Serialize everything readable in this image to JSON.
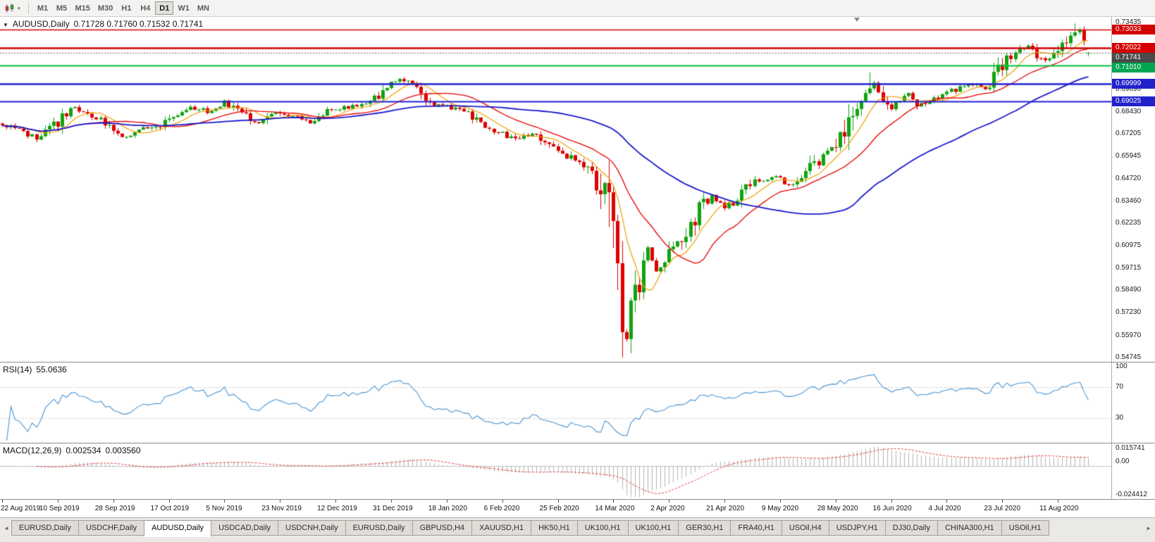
{
  "toolbar": {
    "timeframes": [
      "M1",
      "M5",
      "M15",
      "M30",
      "H1",
      "H4",
      "D1",
      "W1",
      "MN"
    ],
    "active": "D1"
  },
  "chart": {
    "title": "AUDUSD,Daily",
    "ohlc": "0.71728 0.71760 0.71532 0.71741"
  },
  "price_axis": {
    "ticks": [
      "0.73435",
      "0.69690",
      "0.68430",
      "0.67205",
      "0.65945",
      "0.64720",
      "0.63460",
      "0.62235",
      "0.60975",
      "0.59715",
      "0.58490",
      "0.57230",
      "0.55970",
      "0.54745"
    ],
    "badges": [
      {
        "text": "0.73033",
        "price": 0.73033,
        "bg": "#d40000"
      },
      {
        "text": "0.72022",
        "price": 0.72022,
        "bg": "#d40000"
      },
      {
        "text": "0.71741",
        "price": 0.71741,
        "bg": "#4a4a4a"
      },
      {
        "text": "0.71010",
        "price": 0.7101,
        "bg": "#00a651"
      },
      {
        "text": "0.69999",
        "price": 0.69999,
        "bg": "#2222cc"
      },
      {
        "text": "0.69025",
        "price": 0.69025,
        "bg": "#2222cc"
      }
    ]
  },
  "rsi": {
    "label": "RSI(14)",
    "value": "55.0636",
    "axis_labels": [
      "100",
      "70",
      "30"
    ],
    "levels": [
      70,
      30
    ],
    "color": "#4a94d2"
  },
  "macd": {
    "label": "MACD(12,26,9)",
    "main_value": "0.002534",
    "signal_value": "0.003560",
    "axis_labels": [
      "0.015741",
      "0.00",
      "-0.024412"
    ],
    "scale": {
      "max": 0.015741,
      "min": -0.024412
    },
    "bar_color": "#b4b4b4",
    "signal_color": "#e03c3c"
  },
  "time_axis": [
    "22 Aug 2019",
    "10 Sep 2019",
    "28 Sep 2019",
    "17 Oct 2019",
    "5 Nov 2019",
    "23 Nov 2019",
    "12 Dec 2019",
    "31 Dec 2019",
    "18 Jan 2020",
    "6 Feb 2020",
    "25 Feb 2020",
    "14 Mar 2020",
    "2 Apr 2020",
    "21 Apr 2020",
    "9 May 2020",
    "28 May 2020",
    "16 Jun 2020",
    "4 Jul 2020",
    "23 Jul 2020",
    "11 Aug 2020"
  ],
  "tabs": {
    "active_index": 2,
    "items": [
      "EURUSD,Daily",
      "USDCHF,Daily",
      "AUDUSD,Daily",
      "USDCAD,Daily",
      "USDCNH,Daily",
      "EURUSD,Daily",
      "GBPUSD,H4",
      "XAUUSD,H1",
      "HK50,H1",
      "UK100,H1",
      "UK100,H1",
      "GER30,H1",
      "FRA40,H1",
      "USOil,H4",
      "USDJPY,H1",
      "DJ30,Daily",
      "CHINA300,H1",
      "USOil,H1"
    ]
  },
  "chart_data": {
    "type": "candlestick",
    "symbol": "AUDUSD",
    "timeframe": "Daily",
    "last": {
      "open": 0.71728,
      "high": 0.7176,
      "low": 0.71532,
      "close": 0.71741
    },
    "ylim": [
      0.54745,
      0.73435
    ],
    "slots": 260,
    "count": 255,
    "up_color": "#0fa30f",
    "down_color": "#dd0000",
    "anchors": [
      [
        0,
        0.677
      ],
      [
        4,
        0.674
      ],
      [
        8,
        0.6695
      ],
      [
        12,
        0.676
      ],
      [
        16,
        0.687
      ],
      [
        20,
        0.683
      ],
      [
        24,
        0.678
      ],
      [
        28,
        0.6705
      ],
      [
        32,
        0.6745
      ],
      [
        36,
        0.676
      ],
      [
        40,
        0.6825
      ],
      [
        44,
        0.687
      ],
      [
        48,
        0.6845
      ],
      [
        52,
        0.6895
      ],
      [
        56,
        0.684
      ],
      [
        60,
        0.678
      ],
      [
        64,
        0.6845
      ],
      [
        68,
        0.682
      ],
      [
        72,
        0.679
      ],
      [
        76,
        0.6845
      ],
      [
        80,
        0.687
      ],
      [
        84,
        0.6885
      ],
      [
        88,
        0.694
      ],
      [
        91,
        0.7005
      ],
      [
        94,
        0.702
      ],
      [
        97,
        0.6965
      ],
      [
        100,
        0.69
      ],
      [
        104,
        0.6875
      ],
      [
        108,
        0.685
      ],
      [
        112,
        0.677
      ],
      [
        116,
        0.673
      ],
      [
        120,
        0.6685
      ],
      [
        124,
        0.672
      ],
      [
        128,
        0.6655
      ],
      [
        132,
        0.66
      ],
      [
        136,
        0.6545
      ],
      [
        139,
        0.645
      ],
      [
        141,
        0.633
      ],
      [
        143,
        0.612
      ],
      [
        145,
        0.57
      ],
      [
        146,
        0.556
      ],
      [
        147,
        0.579
      ],
      [
        149,
        0.592
      ],
      [
        151,
        0.61
      ],
      [
        153,
        0.595
      ],
      [
        155,
        0.602
      ],
      [
        157,
        0.609
      ],
      [
        160,
        0.617
      ],
      [
        163,
        0.63
      ],
      [
        166,
        0.637
      ],
      [
        169,
        0.631
      ],
      [
        172,
        0.6365
      ],
      [
        175,
        0.645
      ],
      [
        178,
        0.647
      ],
      [
        181,
        0.649
      ],
      [
        184,
        0.643
      ],
      [
        187,
        0.6475
      ],
      [
        190,
        0.655
      ],
      [
        193,
        0.662
      ],
      [
        196,
        0.668
      ],
      [
        199,
        0.685
      ],
      [
        202,
        0.697
      ],
      [
        204,
        0.7
      ],
      [
        206,
        0.693
      ],
      [
        208,
        0.687
      ],
      [
        210,
        0.691
      ],
      [
        212,
        0.695
      ],
      [
        214,
        0.688
      ],
      [
        216,
        0.69
      ],
      [
        219,
        0.693
      ],
      [
        222,
        0.696
      ],
      [
        225,
        0.699
      ],
      [
        228,
        0.701
      ],
      [
        230,
        0.696
      ],
      [
        232,
        0.705
      ],
      [
        234,
        0.711
      ],
      [
        236,
        0.715
      ],
      [
        238,
        0.718
      ],
      [
        240,
        0.721
      ],
      [
        242,
        0.717
      ],
      [
        244,
        0.713
      ],
      [
        246,
        0.717
      ],
      [
        248,
        0.721
      ],
      [
        250,
        0.726
      ],
      [
        252,
        0.729
      ],
      [
        253,
        0.7215
      ],
      [
        254,
        0.71741
      ]
    ],
    "forced": [
      {
        "i": 145,
        "low": 0.54745
      },
      {
        "i": 203,
        "high": 0.7064
      },
      {
        "i": 251,
        "high": 0.7337
      },
      {
        "i": 254,
        "open": 0.71728,
        "high": 0.7176,
        "low": 0.71532,
        "close": 0.71741
      }
    ],
    "moving_averages": [
      {
        "period": 8,
        "color": "#f0a000",
        "width": 1.2
      },
      {
        "period": 20,
        "color": "#e60000",
        "width": 1.3
      },
      {
        "period": 55,
        "color": "#1a1acc",
        "width": 1.8
      }
    ],
    "levels": [
      {
        "price": 0.73033,
        "color": "#dd0000",
        "width": 1.5
      },
      {
        "price": 0.72022,
        "color": "#cc0000",
        "width": 2.5
      },
      {
        "price": 0.7101,
        "color": "#00c13c",
        "width": 2
      },
      {
        "price": 0.69999,
        "color": "#2121d6",
        "width": 2.5
      },
      {
        "price": 0.69025,
        "color": "#2121d6",
        "width": 2
      }
    ],
    "bid_line": {
      "price": 0.71741,
      "color": "#666666"
    }
  }
}
